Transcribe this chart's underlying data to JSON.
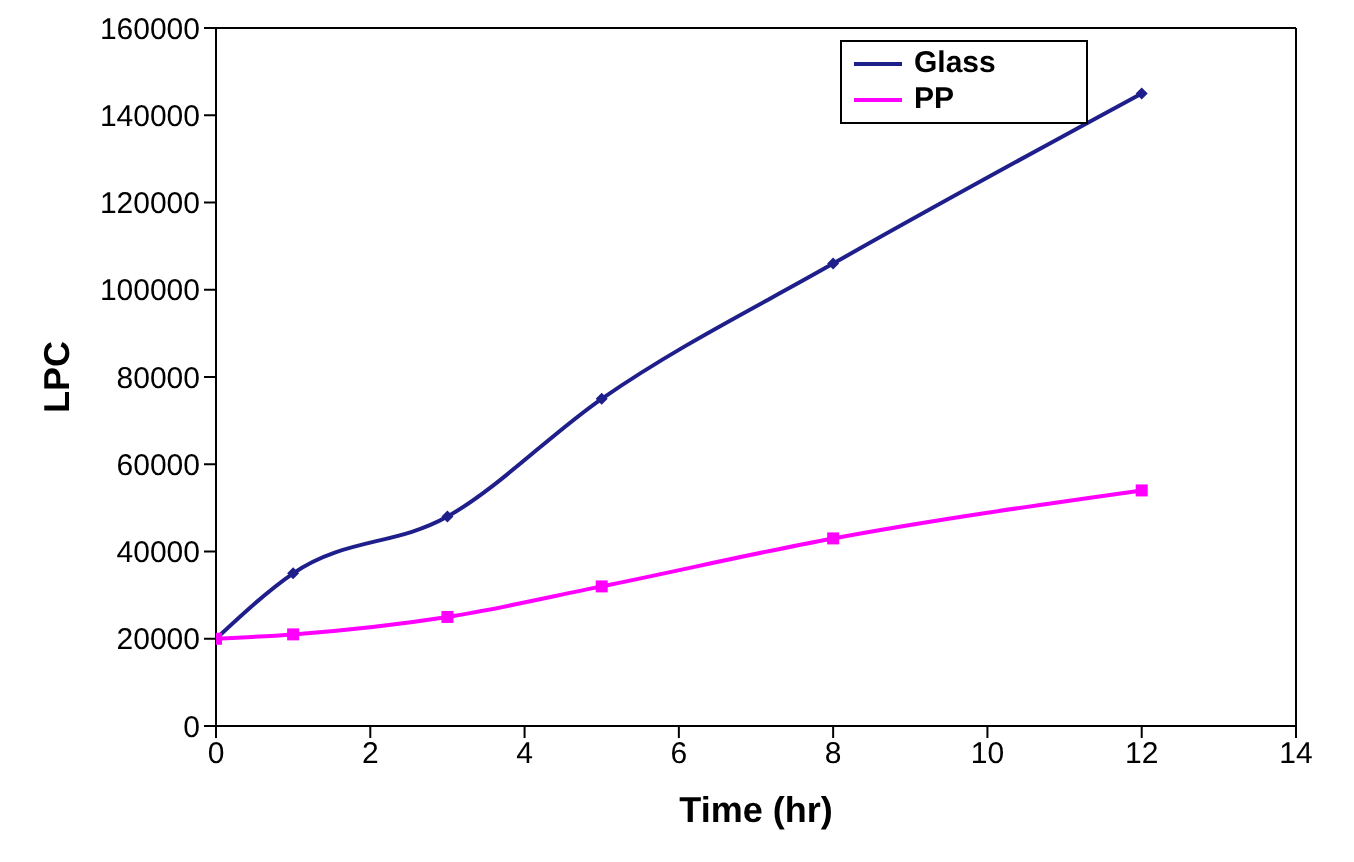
{
  "chart_data": {
    "type": "line",
    "xlabel": "Time (hr)",
    "ylabel": "LPC",
    "x": [
      0,
      1,
      3,
      5,
      8,
      12
    ],
    "series": [
      {
        "name": "Glass",
        "color": "#1f1f8c",
        "values": [
          20000,
          35000,
          48000,
          75000,
          106000,
          145000
        ],
        "marker": "diamond"
      },
      {
        "name": "PP",
        "color": "#ff00ff",
        "values": [
          20000,
          21000,
          25000,
          32000,
          43000,
          54000
        ],
        "marker": "square"
      }
    ],
    "xlim": [
      0,
      14
    ],
    "xticks": [
      0,
      2,
      4,
      6,
      8,
      10,
      12,
      14
    ],
    "ylim": [
      0,
      160000
    ],
    "yticks": [
      0,
      20000,
      40000,
      60000,
      80000,
      100000,
      120000,
      140000,
      160000
    ],
    "grid": false,
    "legend": "top right",
    "line_style": "solid"
  }
}
